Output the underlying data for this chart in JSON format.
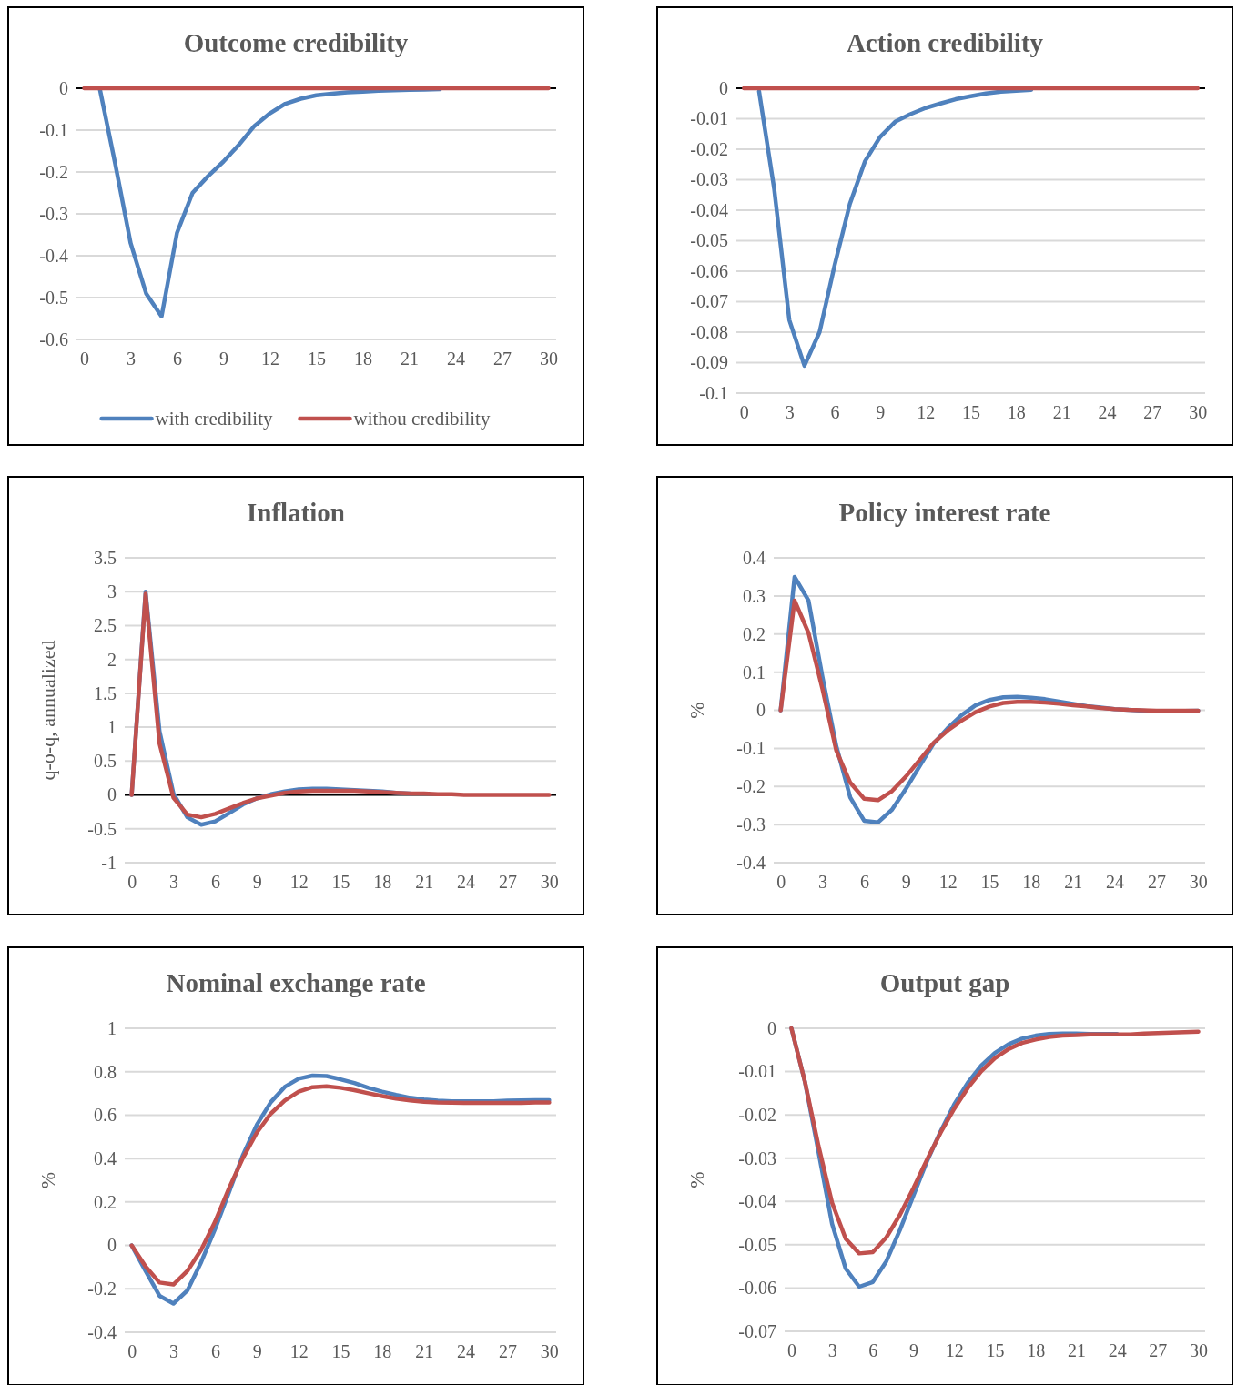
{
  "chart_data": [
    {
      "type": "line",
      "title": "Outcome credibility",
      "x": [
        0,
        1,
        2,
        3,
        4,
        5,
        6,
        7,
        8,
        9,
        10,
        11,
        12,
        13,
        14,
        15,
        16,
        17,
        18,
        19,
        20,
        21,
        22,
        23,
        24,
        25,
        26,
        27,
        28,
        29,
        30
      ],
      "xlim": [
        -0.5,
        30.5
      ],
      "xticks": [
        0,
        3,
        6,
        9,
        12,
        15,
        18,
        21,
        24,
        27,
        30
      ],
      "ylim": [
        -0.6,
        0
      ],
      "yticks": [
        0,
        -0.1,
        -0.2,
        -0.3,
        -0.4,
        -0.5,
        -0.6
      ],
      "grid": "y",
      "legend": "bottom",
      "ref_lines": [
        {
          "axis": "y",
          "value": 0,
          "color": "#000000"
        }
      ],
      "series": [
        {
          "name": "with credibility",
          "color": "#4f81bd",
          "values": [
            null,
            0,
            -0.18,
            -0.37,
            -0.49,
            -0.545,
            -0.345,
            -0.25,
            -0.21,
            -0.175,
            -0.135,
            -0.09,
            -0.06,
            -0.037,
            -0.025,
            -0.017,
            -0.013,
            -0.01,
            -0.008,
            -0.006,
            -0.005,
            -0.004,
            -0.003,
            -0.002,
            null,
            null,
            null,
            null,
            null,
            null,
            null
          ]
        },
        {
          "name": "withou credibility",
          "color": "#c0504d",
          "values": [
            0,
            0,
            0,
            0,
            0,
            0,
            0,
            0,
            0,
            0,
            0,
            0,
            0,
            0,
            0,
            0,
            0,
            0,
            0,
            0,
            0,
            0,
            0,
            0,
            0,
            0,
            0,
            0,
            0,
            0,
            0
          ]
        }
      ]
    },
    {
      "type": "line",
      "title": "Action credibility",
      "x": [
        0,
        1,
        2,
        3,
        4,
        5,
        6,
        7,
        8,
        9,
        10,
        11,
        12,
        13,
        14,
        15,
        16,
        17,
        18,
        19,
        20,
        21,
        22,
        23,
        24,
        25,
        26,
        27,
        28,
        29,
        30
      ],
      "xlim": [
        -0.5,
        30.5
      ],
      "xticks": [
        0,
        3,
        6,
        9,
        12,
        15,
        18,
        21,
        24,
        27,
        30
      ],
      "ylim": [
        -0.1,
        0
      ],
      "yticks": [
        0,
        -0.01,
        -0.02,
        -0.03,
        -0.04,
        -0.05,
        -0.06,
        -0.07,
        -0.08,
        -0.09,
        -0.1
      ],
      "grid": "y",
      "ref_lines": [
        {
          "axis": "y",
          "value": 0,
          "color": "#000000"
        }
      ],
      "series": [
        {
          "color": "#4f81bd",
          "values": [
            null,
            -0.001,
            -0.033,
            -0.076,
            -0.091,
            -0.08,
            -0.058,
            -0.038,
            -0.024,
            -0.016,
            -0.011,
            -0.0085,
            -0.0065,
            -0.005,
            -0.0036,
            -0.0026,
            -0.0017,
            -0.0011,
            -0.0008,
            -0.0005,
            null,
            null,
            null,
            null,
            null,
            null,
            null,
            null,
            null,
            null,
            null
          ]
        },
        {
          "color": "#c0504d",
          "values": [
            0,
            0,
            0,
            0,
            0,
            0,
            0,
            0,
            0,
            0,
            0,
            0,
            0,
            0,
            0,
            0,
            0,
            0,
            0,
            0,
            0,
            0,
            0,
            0,
            0,
            0,
            0,
            0,
            0,
            0,
            0
          ]
        }
      ]
    },
    {
      "type": "line",
      "title": "Inflation",
      "ylabel": "q-o-q, annualized",
      "x": [
        0,
        1,
        2,
        3,
        4,
        5,
        6,
        7,
        8,
        9,
        10,
        11,
        12,
        13,
        14,
        15,
        16,
        17,
        18,
        19,
        20,
        21,
        22,
        23,
        24,
        25,
        26,
        27,
        28,
        29,
        30
      ],
      "xlim": [
        -0.5,
        30.5
      ],
      "xticks": [
        0,
        3,
        6,
        9,
        12,
        15,
        18,
        21,
        24,
        27,
        30
      ],
      "ylim": [
        -1,
        3.5
      ],
      "yticks": [
        3.5,
        3,
        2.5,
        2,
        1.5,
        1,
        0.5,
        0,
        -0.5,
        -1
      ],
      "grid": "y",
      "ref_lines": [
        {
          "axis": "y",
          "value": 0,
          "color": "#000000"
        }
      ],
      "series": [
        {
          "color": "#4f81bd",
          "values": [
            0,
            3.0,
            0.94,
            0.02,
            -0.33,
            -0.44,
            -0.39,
            -0.27,
            -0.14,
            -0.05,
            0.01,
            0.05,
            0.08,
            0.09,
            0.09,
            0.08,
            0.07,
            0.06,
            0.05,
            0.03,
            0.02,
            null,
            null,
            null,
            null,
            null,
            null,
            null,
            null,
            null,
            null
          ]
        },
        {
          "color": "#c0504d",
          "values": [
            0,
            2.97,
            0.76,
            -0.04,
            -0.29,
            -0.33,
            -0.28,
            -0.2,
            -0.12,
            -0.05,
            -0.01,
            0.03,
            0.05,
            0.06,
            0.06,
            0.06,
            0.06,
            0.05,
            0.04,
            0.03,
            0.02,
            0.02,
            0.01,
            0.01,
            0,
            0,
            0,
            0,
            0,
            0,
            0
          ]
        }
      ]
    },
    {
      "type": "line",
      "title": "Policy interest rate",
      "ylabel": "%",
      "x": [
        0,
        1,
        2,
        3,
        4,
        5,
        6,
        7,
        8,
        9,
        10,
        11,
        12,
        13,
        14,
        15,
        16,
        17,
        18,
        19,
        20,
        21,
        22,
        23,
        24,
        25,
        26,
        27,
        28,
        29,
        30
      ],
      "xlim": [
        -0.5,
        30.5
      ],
      "xticks": [
        0,
        3,
        6,
        9,
        12,
        15,
        18,
        21,
        24,
        27,
        30
      ],
      "ylim": [
        -0.4,
        0.4
      ],
      "yticks": [
        0.4,
        0.3,
        0.2,
        0.1,
        0,
        -0.1,
        -0.2,
        -0.3,
        -0.4
      ],
      "grid": "y",
      "series": [
        {
          "color": "#4f81bd",
          "values": [
            0,
            0.35,
            0.288,
            0.088,
            -0.094,
            -0.229,
            -0.29,
            -0.294,
            -0.261,
            -0.206,
            -0.146,
            -0.087,
            -0.047,
            -0.013,
            0.013,
            0.027,
            0.034,
            0.035,
            0.033,
            0.029,
            0.023,
            0.017,
            0.011,
            0.007,
            0.003,
            0.001,
            -0.001,
            -0.003,
            -0.003,
            -0.002,
            -0.001
          ]
        },
        {
          "color": "#c0504d",
          "values": [
            0,
            0.288,
            0.203,
            0.056,
            -0.106,
            -0.19,
            -0.232,
            -0.236,
            -0.212,
            -0.174,
            -0.13,
            -0.085,
            -0.053,
            -0.027,
            -0.005,
            0.01,
            0.019,
            0.022,
            0.022,
            0.02,
            0.017,
            0.013,
            0.01,
            0.006,
            0.003,
            0.001,
            0,
            -0.001,
            -0.001,
            -0.001,
            -0.001
          ]
        }
      ]
    },
    {
      "type": "line",
      "title": "Nominal exchange rate",
      "ylabel": "%",
      "x": [
        0,
        1,
        2,
        3,
        4,
        5,
        6,
        7,
        8,
        9,
        10,
        11,
        12,
        13,
        14,
        15,
        16,
        17,
        18,
        19,
        20,
        21,
        22,
        23,
        24,
        25,
        26,
        27,
        28,
        29,
        30
      ],
      "xlim": [
        -0.5,
        30.5
      ],
      "xticks": [
        0,
        3,
        6,
        9,
        12,
        15,
        18,
        21,
        24,
        27,
        30
      ],
      "ylim": [
        -0.4,
        1
      ],
      "yticks": [
        1,
        0.8,
        0.6,
        0.4,
        0.2,
        0,
        -0.2,
        -0.4
      ],
      "grid": "y",
      "series": [
        {
          "color": "#4f81bd",
          "values": [
            0,
            -0.118,
            -0.232,
            -0.268,
            -0.208,
            -0.076,
            0.076,
            0.246,
            0.417,
            0.556,
            0.66,
            0.73,
            0.768,
            0.782,
            0.78,
            0.765,
            0.748,
            0.726,
            0.708,
            0.693,
            0.68,
            0.672,
            0.667,
            0.664,
            0.664,
            0.664,
            0.664,
            0.667,
            0.668,
            0.669,
            0.669
          ]
        },
        {
          "color": "#c0504d",
          "values": [
            0,
            -0.097,
            -0.171,
            -0.18,
            -0.118,
            -0.02,
            0.11,
            0.264,
            0.403,
            0.52,
            0.607,
            0.667,
            0.708,
            0.729,
            0.733,
            0.726,
            0.715,
            0.701,
            0.688,
            0.676,
            0.668,
            0.662,
            0.658,
            0.657,
            0.656,
            0.656,
            0.656,
            0.656,
            0.656,
            0.658,
            0.658
          ]
        }
      ]
    },
    {
      "type": "line",
      "title": "Output gap",
      "ylabel": "%",
      "x": [
        0,
        1,
        2,
        3,
        4,
        5,
        6,
        7,
        8,
        9,
        10,
        11,
        12,
        13,
        14,
        15,
        16,
        17,
        18,
        19,
        20,
        21,
        22,
        23,
        24,
        25,
        26,
        27,
        28,
        29,
        30
      ],
      "xlim": [
        -0.5,
        30.5
      ],
      "xticks": [
        0,
        3,
        6,
        9,
        12,
        15,
        18,
        21,
        24,
        27,
        30
      ],
      "ylim": [
        -0.07,
        0
      ],
      "yticks": [
        0,
        -0.01,
        -0.02,
        -0.03,
        -0.04,
        -0.05,
        -0.06,
        -0.07
      ],
      "grid": "y",
      "series": [
        {
          "color": "#4f81bd",
          "values": [
            0,
            -0.0124,
            -0.0286,
            -0.0452,
            -0.0555,
            -0.0597,
            -0.0586,
            -0.0538,
            -0.0466,
            -0.0386,
            -0.0307,
            -0.0238,
            -0.0176,
            -0.0126,
            -0.0086,
            -0.0057,
            -0.0037,
            -0.0024,
            -0.0017,
            -0.0013,
            -0.0012,
            -0.0012,
            -0.0013,
            -0.0013,
            -0.0013,
            null,
            null,
            null,
            null,
            null,
            null
          ]
        },
        {
          "color": "#c0504d",
          "values": [
            0,
            -0.0124,
            -0.0272,
            -0.0403,
            -0.0486,
            -0.052,
            -0.0517,
            -0.0483,
            -0.0431,
            -0.0369,
            -0.0303,
            -0.0241,
            -0.0186,
            -0.0138,
            -0.0099,
            -0.0069,
            -0.0048,
            -0.0034,
            -0.0026,
            -0.002,
            -0.0017,
            -0.0016,
            -0.0014,
            -0.0014,
            -0.0014,
            -0.0014,
            -0.0012,
            -0.0011,
            -0.001,
            -0.0009,
            -0.0008
          ]
        }
      ]
    }
  ]
}
